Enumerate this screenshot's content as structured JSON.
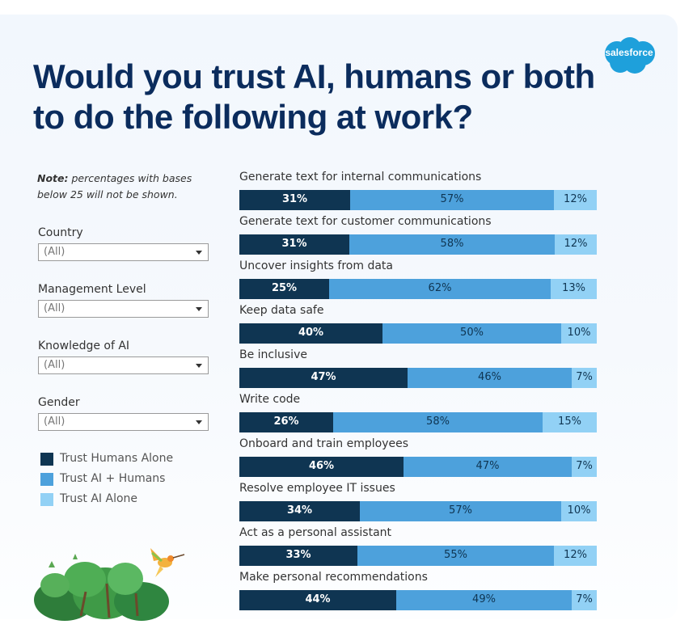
{
  "title": "Would you trust AI, humans or both to do the following at work?",
  "brand": "salesforce",
  "note": {
    "bold": "Note:",
    "text": " percentages with bases below 25 will not be shown."
  },
  "filters": [
    {
      "label": "Country",
      "value": "(All)"
    },
    {
      "label": "Management Level",
      "value": "(All)"
    },
    {
      "label": "Knowledge of AI",
      "value": "(All)"
    },
    {
      "label": "Gender",
      "value": "(All)"
    }
  ],
  "colors": {
    "humans_alone": "#0f3552",
    "ai_humans": "#4da1dc",
    "ai_alone": "#92d1f5",
    "title": "#0b2c5d"
  },
  "chart_data": {
    "type": "bar",
    "orientation": "horizontal-stacked-100",
    "categories": [
      "Generate text for internal communications",
      "Generate text for customer communications",
      "Uncover insights from data",
      "Keep data safe",
      "Be inclusive",
      "Write code",
      "Onboard and train employees",
      "Resolve employee IT issues",
      "Act as a personal assistant",
      "Make personal recommendations"
    ],
    "series": [
      {
        "name": "Trust Humans Alone",
        "values": [
          31,
          31,
          25,
          40,
          47,
          26,
          46,
          34,
          33,
          44
        ]
      },
      {
        "name": "Trust AI + Humans",
        "values": [
          57,
          58,
          62,
          50,
          46,
          58,
          47,
          57,
          55,
          49
        ]
      },
      {
        "name": "Trust AI Alone",
        "values": [
          12,
          12,
          13,
          10,
          7,
          15,
          7,
          10,
          12,
          7
        ]
      }
    ],
    "value_suffix": "%",
    "legend_position": "left"
  }
}
